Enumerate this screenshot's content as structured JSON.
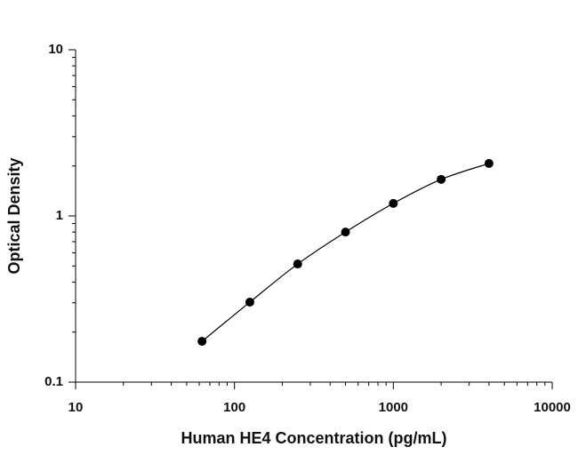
{
  "chart_data": {
    "type": "scatter",
    "line": true,
    "x_label": "Human HE4 Concentration (pg/mL)",
    "y_label": "Optical Density",
    "xscale": "log",
    "yscale": "log",
    "xlim": [
      10,
      10000
    ],
    "ylim": [
      0.1,
      10
    ],
    "xticks": [
      10,
      100,
      1000,
      10000
    ],
    "yticks": [
      0.1,
      1,
      10
    ],
    "series": [
      {
        "color": "#000000",
        "x": [
          62.5,
          125,
          250,
          500,
          1000,
          2000,
          4000
        ],
        "values": [
          0.176,
          0.303,
          0.514,
          0.8,
          1.19,
          1.66,
          2.07
        ]
      }
    ]
  }
}
